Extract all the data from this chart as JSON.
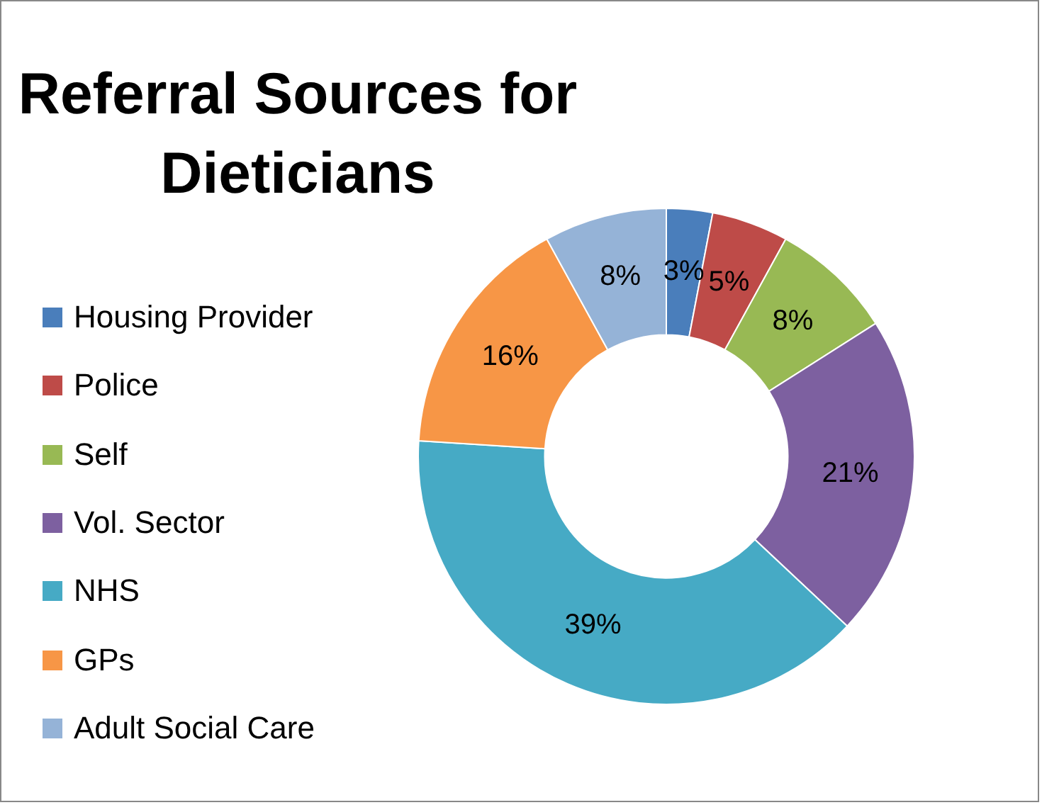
{
  "chart_data": {
    "type": "donut",
    "title": "Referral Sources for Dieticians",
    "categories": [
      "Housing Provider",
      "Police",
      "Self",
      "Vol. Sector",
      "NHS",
      "GPs",
      "Adult Social Care"
    ],
    "values": [
      3,
      5,
      8,
      21,
      39,
      16,
      8
    ],
    "value_labels": [
      "3%",
      "5%",
      "8%",
      "21%",
      "39%",
      "16%",
      "8%"
    ],
    "colors": [
      "#4a7ebb",
      "#be4b48",
      "#98b954",
      "#7d60a0",
      "#46aac5",
      "#f79646",
      "#95b3d7"
    ],
    "legend": "left"
  }
}
